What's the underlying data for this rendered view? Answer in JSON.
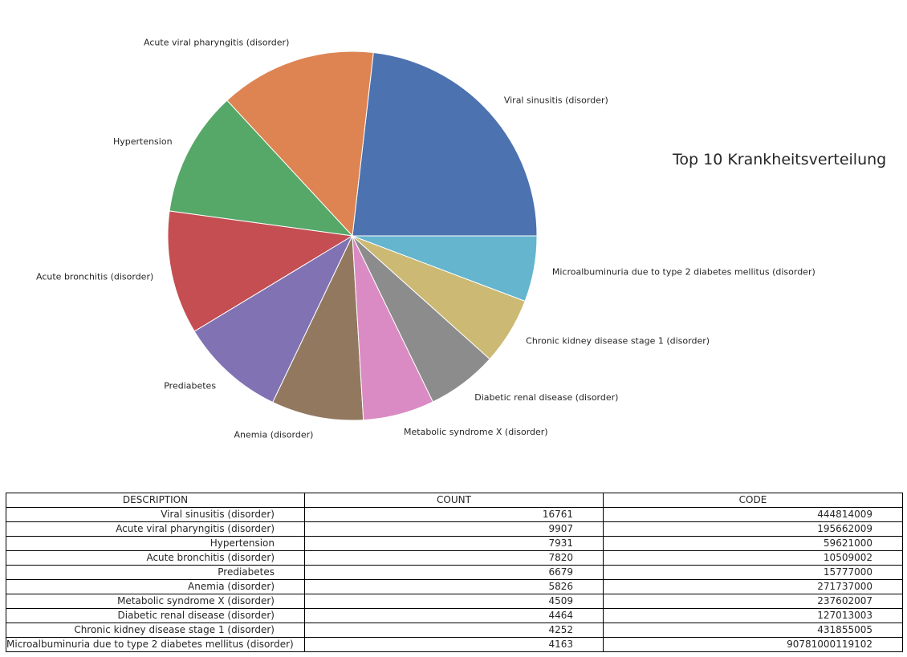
{
  "chart_data": {
    "type": "pie",
    "title": "Top 10 Krankheitsverteilung",
    "categories": [
      "Viral sinusitis (disorder)",
      "Acute viral pharyngitis (disorder)",
      "Hypertension",
      "Acute bronchitis (disorder)",
      "Prediabetes",
      "Anemia (disorder)",
      "Metabolic syndrome X (disorder)",
      "Diabetic renal disease (disorder)",
      "Chronic kidney disease stage 1 (disorder)",
      "Microalbuminuria due to type 2 diabetes mellitus (disorder)"
    ],
    "values": [
      16761,
      9907,
      7931,
      7820,
      6679,
      5826,
      4509,
      4464,
      4252,
      4163
    ],
    "colors": [
      "#4c72b0",
      "#dd8452",
      "#55a868",
      "#c44e52",
      "#8172b3",
      "#937860",
      "#da8bc3",
      "#8c8c8c",
      "#ccb974",
      "#64b5cd"
    ],
    "start_angle_deg": 0,
    "direction": "counterclockwise",
    "legend": "none"
  },
  "table": {
    "headers": [
      "DESCRIPTION",
      "COUNT",
      "CODE"
    ],
    "rows": [
      [
        "Viral sinusitis (disorder)",
        "16761",
        "444814009"
      ],
      [
        "Acute viral pharyngitis (disorder)",
        "9907",
        "195662009"
      ],
      [
        "Hypertension",
        "7931",
        "59621000"
      ],
      [
        "Acute bronchitis (disorder)",
        "7820",
        "10509002"
      ],
      [
        "Prediabetes",
        "6679",
        "15777000"
      ],
      [
        "Anemia (disorder)",
        "5826",
        "271737000"
      ],
      [
        "Metabolic syndrome X (disorder)",
        "4509",
        "237602007"
      ],
      [
        "Diabetic renal disease (disorder)",
        "4464",
        "127013003"
      ],
      [
        "Chronic kidney disease stage 1 (disorder)",
        "4252",
        "431855005"
      ],
      [
        "Microalbuminuria due to type 2 diabetes mellitus (disorder)",
        "4163",
        "90781000119102"
      ]
    ]
  }
}
